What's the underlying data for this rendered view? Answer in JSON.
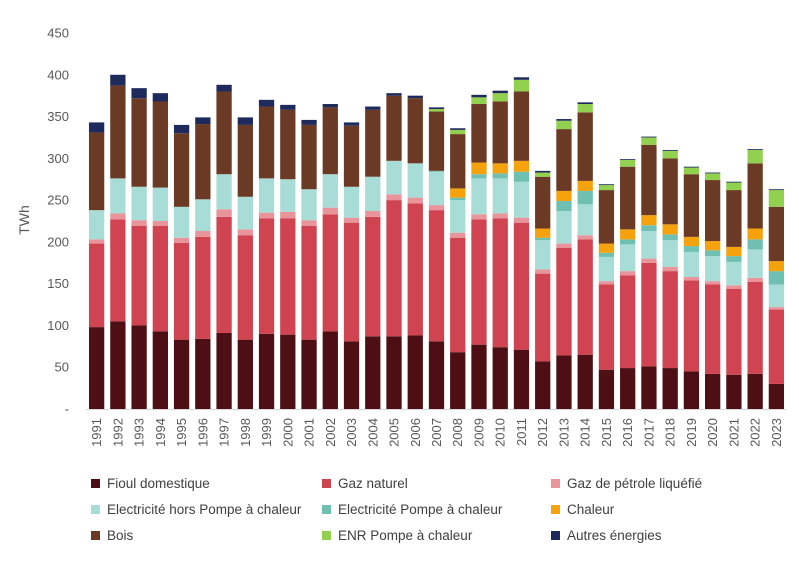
{
  "chart_data": {
    "type": "bar",
    "stacked": true,
    "title": "",
    "xlabel": "",
    "ylabel": "TWh",
    "ylim": [
      0,
      450
    ],
    "yticks": [
      0,
      50,
      100,
      150,
      200,
      250,
      300,
      350,
      400,
      450
    ],
    "ytick_labels": [
      "-",
      "50",
      "100",
      "150",
      "200",
      "250",
      "300",
      "350",
      "400",
      "450"
    ],
    "grid": false,
    "legend_position": "bottom",
    "categories": [
      "1991",
      "1992",
      "1993",
      "1994",
      "1995",
      "1996",
      "1997",
      "1998",
      "1999",
      "2000",
      "2001",
      "2002",
      "2003",
      "2004",
      "2005",
      "2006",
      "2007",
      "2008",
      "2009",
      "2010",
      "2011",
      "2012",
      "2013",
      "2014",
      "2015",
      "2016",
      "2017",
      "2018",
      "2019",
      "2020",
      "2021",
      "2022",
      "2023"
    ],
    "series": [
      {
        "name": "Fioul domestique",
        "color": "#4d0f13",
        "values": [
          98,
          105,
          100,
          93,
          83,
          84,
          91,
          83,
          90,
          89,
          83,
          93,
          81,
          87,
          87,
          88,
          81,
          68,
          77,
          74,
          71,
          57,
          64,
          65,
          47,
          49,
          51,
          49,
          45,
          42,
          41,
          42,
          30
        ]
      },
      {
        "name": "Gaz naturel",
        "color": "#d04350",
        "values": [
          100,
          122,
          119,
          126,
          116,
          122,
          139,
          125,
          138,
          139,
          136,
          140,
          142,
          143,
          163,
          158,
          157,
          137,
          150,
          154,
          152,
          105,
          129,
          138,
          102,
          111,
          124,
          116,
          109,
          107,
          103,
          110,
          89
        ]
      },
      {
        "name": "Gaz de pétrole liquéfié",
        "color": "#e8949a",
        "values": [
          5,
          7,
          7,
          6,
          6,
          7,
          9,
          7,
          7,
          8,
          7,
          8,
          6,
          7,
          7,
          7,
          6,
          6,
          6,
          6,
          6,
          5,
          5,
          5,
          4,
          5,
          5,
          5,
          4,
          4,
          4,
          5,
          3
        ]
      },
      {
        "name": "Electricité hors Pompe à chaleur",
        "color": "#a8dcd6",
        "values": [
          35,
          42,
          40,
          40,
          37,
          38,
          42,
          39,
          41,
          39,
          37,
          40,
          37,
          41,
          40,
          41,
          40,
          39,
          43,
          42,
          43,
          35,
          39,
          37,
          29,
          32,
          33,
          32,
          30,
          30,
          28,
          34,
          27
        ]
      },
      {
        "name": "Electricité Pompe à chaleur",
        "color": "#6fc0b0",
        "values": [
          0,
          0,
          0,
          0,
          0,
          0,
          0,
          0,
          0,
          0,
          0,
          0,
          0,
          0,
          0,
          0,
          1,
          3,
          5,
          6,
          12,
          3,
          12,
          16,
          5,
          6,
          7,
          7,
          7,
          7,
          7,
          12,
          16
        ]
      },
      {
        "name": "Chaleur",
        "color": "#f5a20d",
        "values": [
          0,
          0,
          0,
          0,
          0,
          0,
          0,
          0,
          0,
          0,
          0,
          0,
          0,
          0,
          0,
          0,
          0,
          11,
          14,
          12,
          13,
          11,
          12,
          12,
          11,
          12,
          12,
          12,
          11,
          11,
          11,
          13,
          12
        ]
      },
      {
        "name": "Bois",
        "color": "#6b3a24",
        "values": [
          93,
          111,
          106,
          103,
          88,
          90,
          99,
          86,
          86,
          83,
          77,
          80,
          73,
          80,
          78,
          78,
          71,
          65,
          70,
          74,
          83,
          62,
          74,
          82,
          64,
          75,
          84,
          79,
          75,
          73,
          68,
          78,
          65
        ]
      },
      {
        "name": "ENR Pompe à chaleur",
        "color": "#92d050",
        "values": [
          0,
          0,
          0,
          0,
          0,
          0,
          0,
          0,
          0,
          0,
          0,
          0,
          0,
          0,
          0,
          0,
          3,
          5,
          8,
          10,
          14,
          5,
          10,
          10,
          6,
          8,
          9,
          9,
          8,
          8,
          9,
          16,
          20
        ]
      },
      {
        "name": "Autres énergies",
        "color": "#1f2a5c",
        "values": [
          12,
          13,
          12,
          10,
          10,
          8,
          8,
          9,
          8,
          6,
          6,
          4,
          4,
          4,
          3,
          3,
          2,
          2,
          3,
          3,
          3,
          2,
          2,
          2,
          1,
          1,
          1,
          1,
          1,
          1,
          1,
          1,
          1
        ]
      }
    ]
  }
}
